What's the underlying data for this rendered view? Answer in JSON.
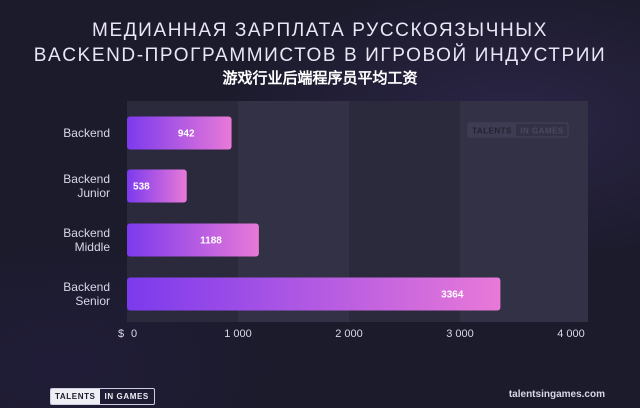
{
  "header": {
    "title_line1": "МЕДИАННАЯ ЗАРПЛАТА РУССКОЯЗЫЧНЫХ",
    "title_line2": "BACKEND-ПРОГРАММИСТОВ В ИГРОВОЙ ИНДУСТРИИ",
    "subtitle": "游戏行业后端程序员平均工资"
  },
  "chart_data": {
    "type": "bar",
    "orientation": "horizontal",
    "categories": [
      [
        "Backend"
      ],
      [
        "Backend",
        "Junior"
      ],
      [
        "Backend",
        "Middle"
      ],
      [
        "Backend",
        "Senior"
      ]
    ],
    "values": [
      942,
      538,
      1188,
      3364
    ],
    "value_labels": [
      "942",
      "538",
      "1188",
      "3364"
    ],
    "xlim": [
      0,
      4000
    ],
    "x_ticks": [
      0,
      1000,
      2000,
      3000,
      4000
    ],
    "x_tick_labels": [
      "0",
      "1 000",
      "2 000",
      "3 000",
      "4 000"
    ],
    "x_currency": "$",
    "grid": "alternating-bands",
    "bar_gradient": [
      "#7c3aed",
      "#e879d8"
    ]
  },
  "watermark": {
    "part1": "TALENTS",
    "part2": "IN GAMES"
  },
  "footer": {
    "logo_part1": "TALENTS",
    "logo_part2": "IN GAMES",
    "url": "talentsingames.com"
  },
  "colors": {
    "background": "#1c1b2c",
    "plot_band_dark": "#2b2a3d",
    "plot_band_light": "#323146",
    "label_text": "#d9d7e6"
  }
}
